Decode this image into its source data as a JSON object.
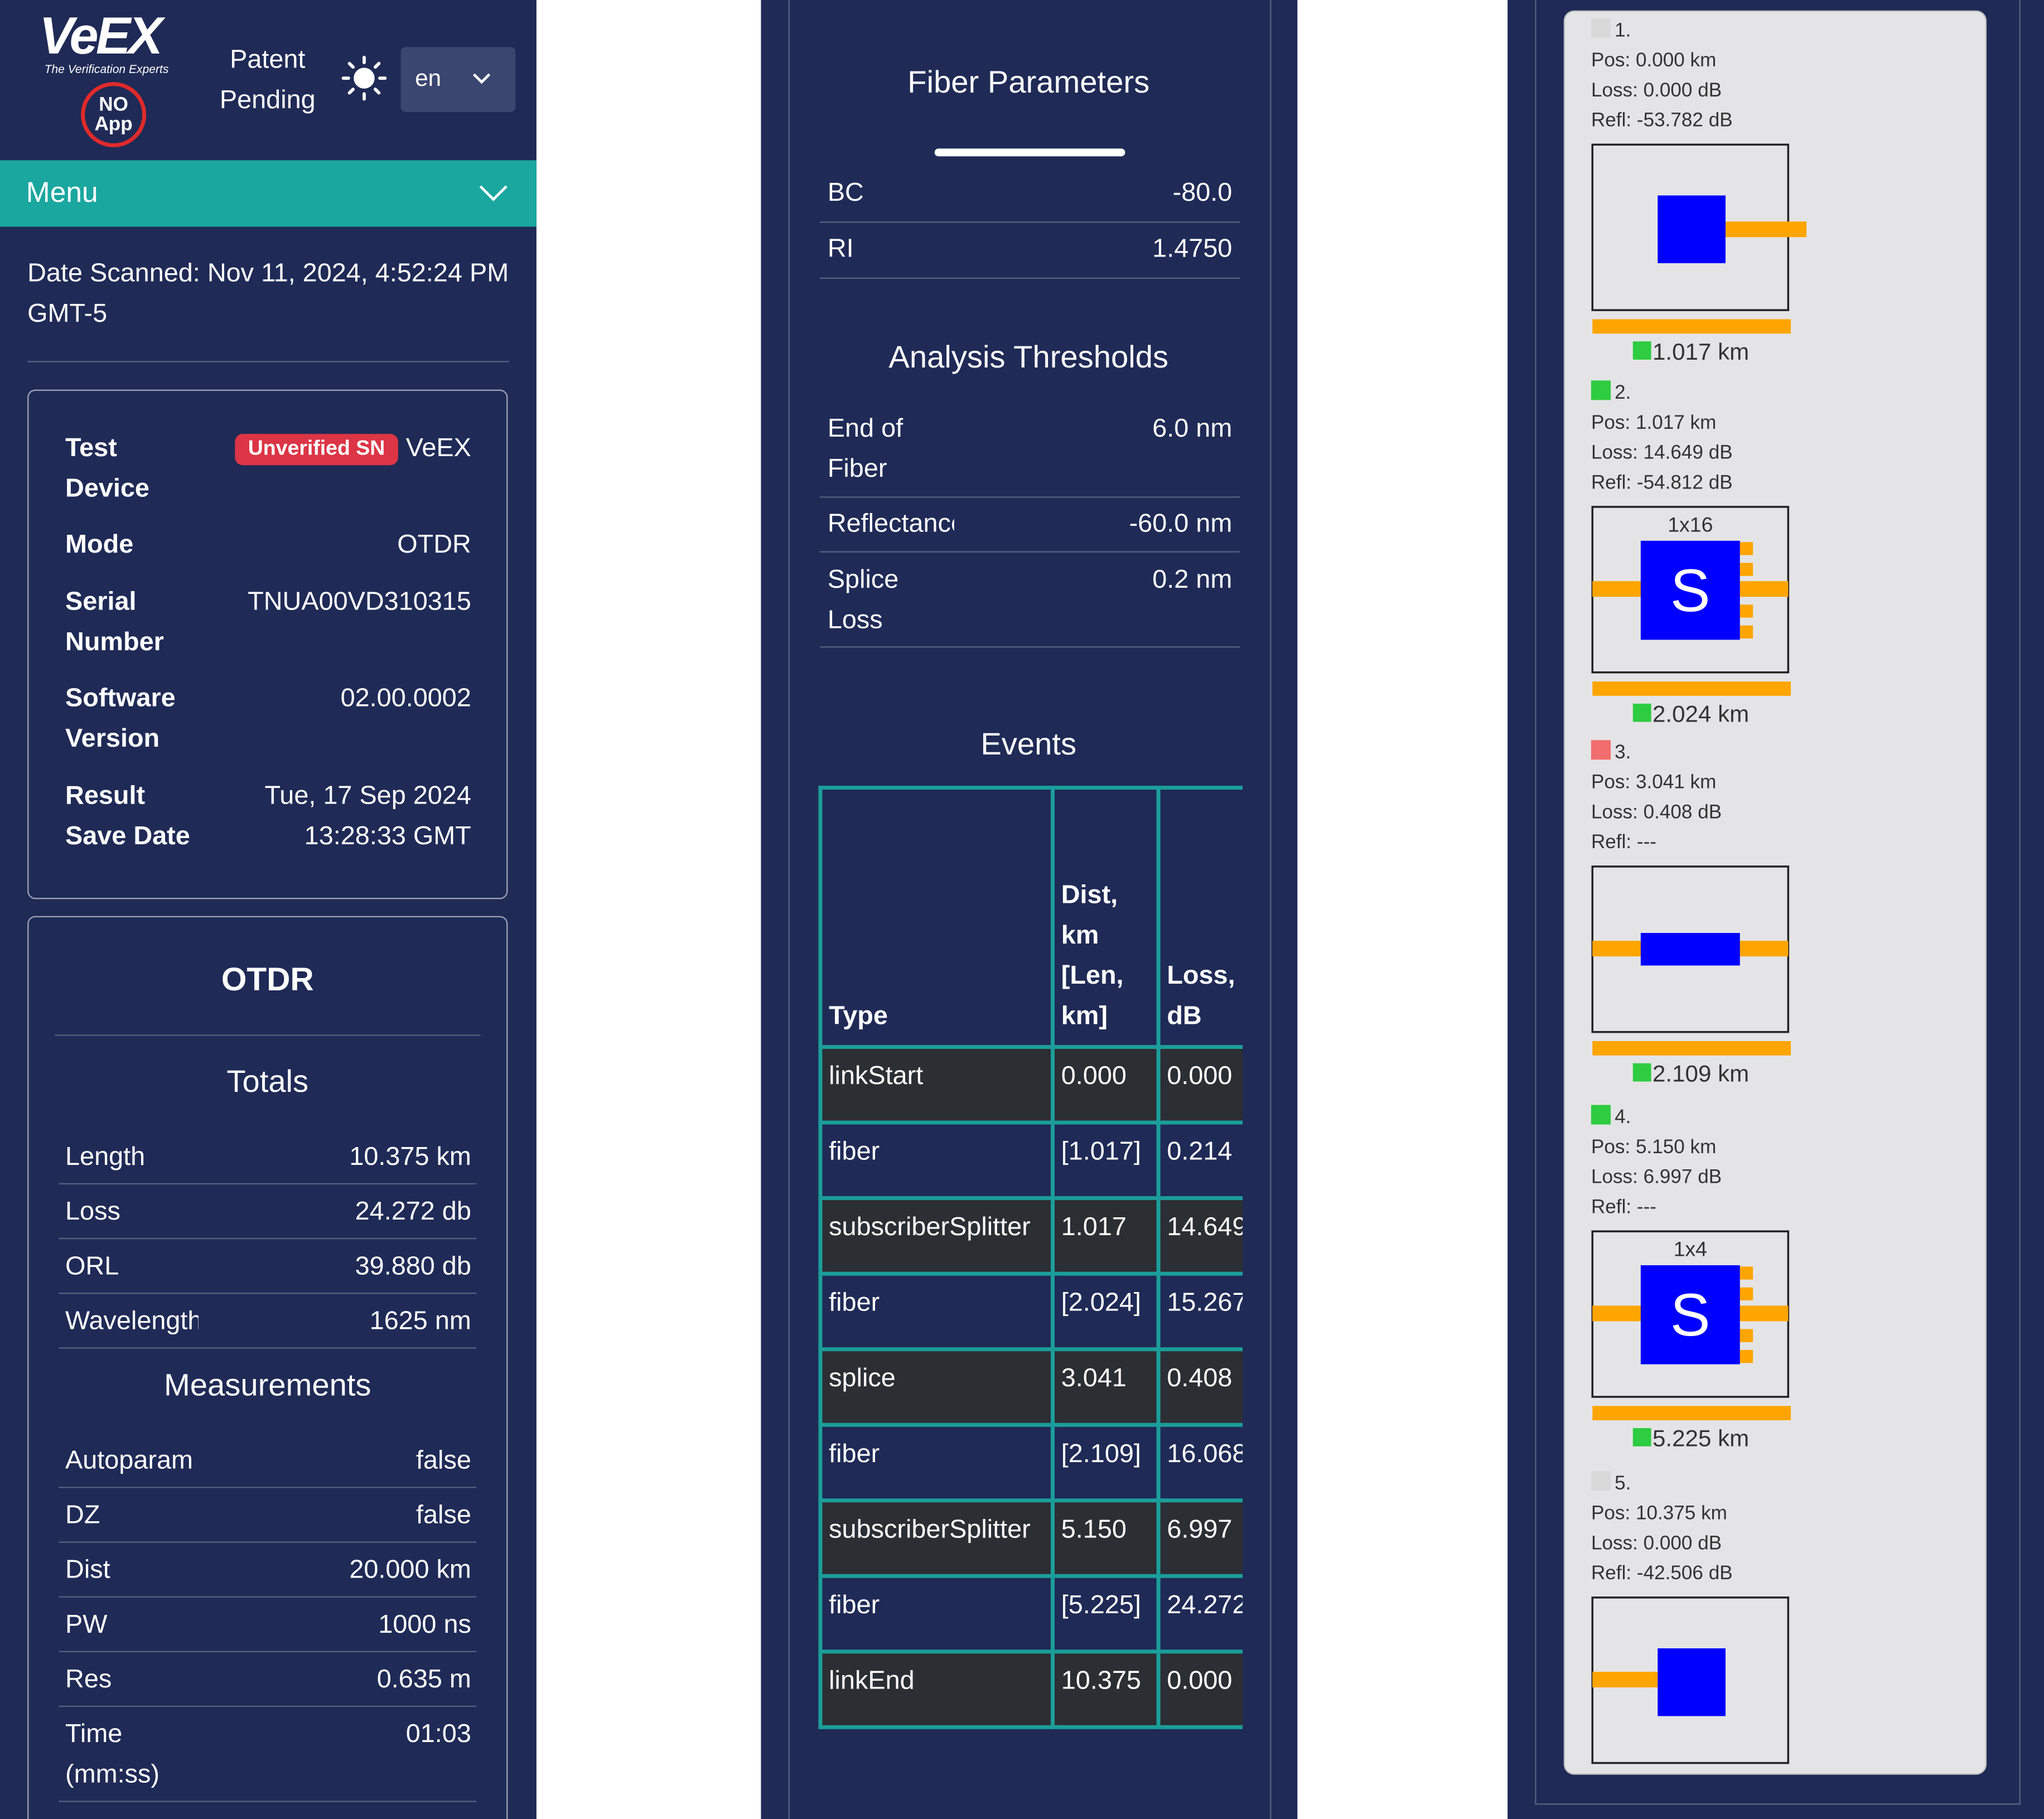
{
  "header": {
    "logo": "VeEX",
    "tagline": "The Verification Experts",
    "badge_top": "NO",
    "badge_bottom": "App",
    "patent": "Patent Pending",
    "language": "en"
  },
  "menu": "Menu",
  "date_scanned": "Date Scanned: Nov 11, 2024, 4:52:24 PM GMT-5",
  "device": {
    "rows": [
      {
        "label": "Test Device",
        "badge": "Unverified SN",
        "value": "VeEX"
      },
      {
        "label": "Mode",
        "value": "OTDR"
      },
      {
        "label": "Serial Number",
        "value": "TNUA00VD310315"
      },
      {
        "label": "Software Version",
        "value": "02.00.0002"
      },
      {
        "label": "Result Save Date",
        "value": "Tue, 17 Sep 2024 13:28:33 GMT"
      }
    ]
  },
  "otdr": {
    "title": "OTDR",
    "sections": [
      {
        "title": "Totals",
        "rows": [
          [
            "Length",
            "10.375 km"
          ],
          [
            "Loss",
            "24.272 db"
          ],
          [
            "ORL",
            "39.880 db"
          ],
          [
            "Wavelength",
            "1625 nm"
          ]
        ]
      },
      {
        "title": "Measurements",
        "rows": [
          [
            "Autoparam",
            "false"
          ],
          [
            "DZ",
            "false"
          ],
          [
            "Dist",
            "20.000 km"
          ],
          [
            "PW",
            "1000 ns"
          ],
          [
            "Res",
            "0.635 m"
          ],
          [
            "Time (mm:ss)",
            "01:03"
          ]
        ]
      }
    ]
  },
  "fiber_parameters": {
    "title": "Fiber Parameters",
    "rows": [
      [
        "BC",
        "-80.0"
      ],
      [
        "RI",
        "1.4750"
      ]
    ]
  },
  "analysis_thresholds": {
    "title": "Analysis Thresholds",
    "rows": [
      [
        "End of Fiber",
        "6.0 nm"
      ],
      [
        "Reflectance",
        "-60.0 nm"
      ],
      [
        "Splice Loss",
        "0.2 nm"
      ]
    ]
  },
  "events_table": {
    "title": "Events",
    "columns": [
      "Type",
      "Dist, km [Len, km]",
      "Loss, dB"
    ],
    "rows": [
      [
        "linkStart",
        "0.000",
        "0.000"
      ],
      [
        "fiber",
        "[1.017]",
        "0.214"
      ],
      [
        "subscriberSplitter",
        "1.017",
        "14.649"
      ],
      [
        "fiber",
        "[2.024]",
        "15.267"
      ],
      [
        "splice",
        "3.041",
        "0.408"
      ],
      [
        "fiber",
        "[2.109]",
        "16.068"
      ],
      [
        "subscriberSplitter",
        "5.150",
        "6.997"
      ],
      [
        "fiber",
        "[5.225]",
        "24.272"
      ],
      [
        "linkEnd",
        "10.375",
        "0.000"
      ]
    ]
  },
  "events": [
    {
      "number": "1.",
      "marker_color": "#d9d9d9",
      "pos": "Pos: 0.000 km",
      "loss": "Loss: 0.000 dB",
      "refl": "Refl: -53.782 dB",
      "segment": "1.017 km",
      "segment_color": "#2ecc40"
    },
    {
      "number": "2.",
      "marker_color": "#2ecc40",
      "pos": "Pos: 1.017 km",
      "loss": "Loss: 14.649 dB",
      "refl": "Refl: -54.812 dB",
      "splitter": "1x16",
      "segment": "2.024 km",
      "segment_color": "#2ecc40"
    },
    {
      "number": "3.",
      "marker_color": "#f26d6d",
      "pos": "Pos: 3.041 km",
      "loss": "Loss: 0.408 dB",
      "refl": "Refl: ---",
      "segment": "2.109 km",
      "segment_color": "#2ecc40"
    },
    {
      "number": "4.",
      "marker_color": "#2ecc40",
      "pos": "Pos: 5.150 km",
      "loss": "Loss: 6.997 dB",
      "refl": "Refl: ---",
      "splitter": "1x4",
      "segment": "5.225 km",
      "segment_color": "#2ecc40"
    },
    {
      "number": "5.",
      "marker_color": "#d9d9d9",
      "pos": "Pos: 10.375 km",
      "loss": "Loss: 0.000 dB",
      "refl": "Refl: -42.506 dB"
    }
  ]
}
